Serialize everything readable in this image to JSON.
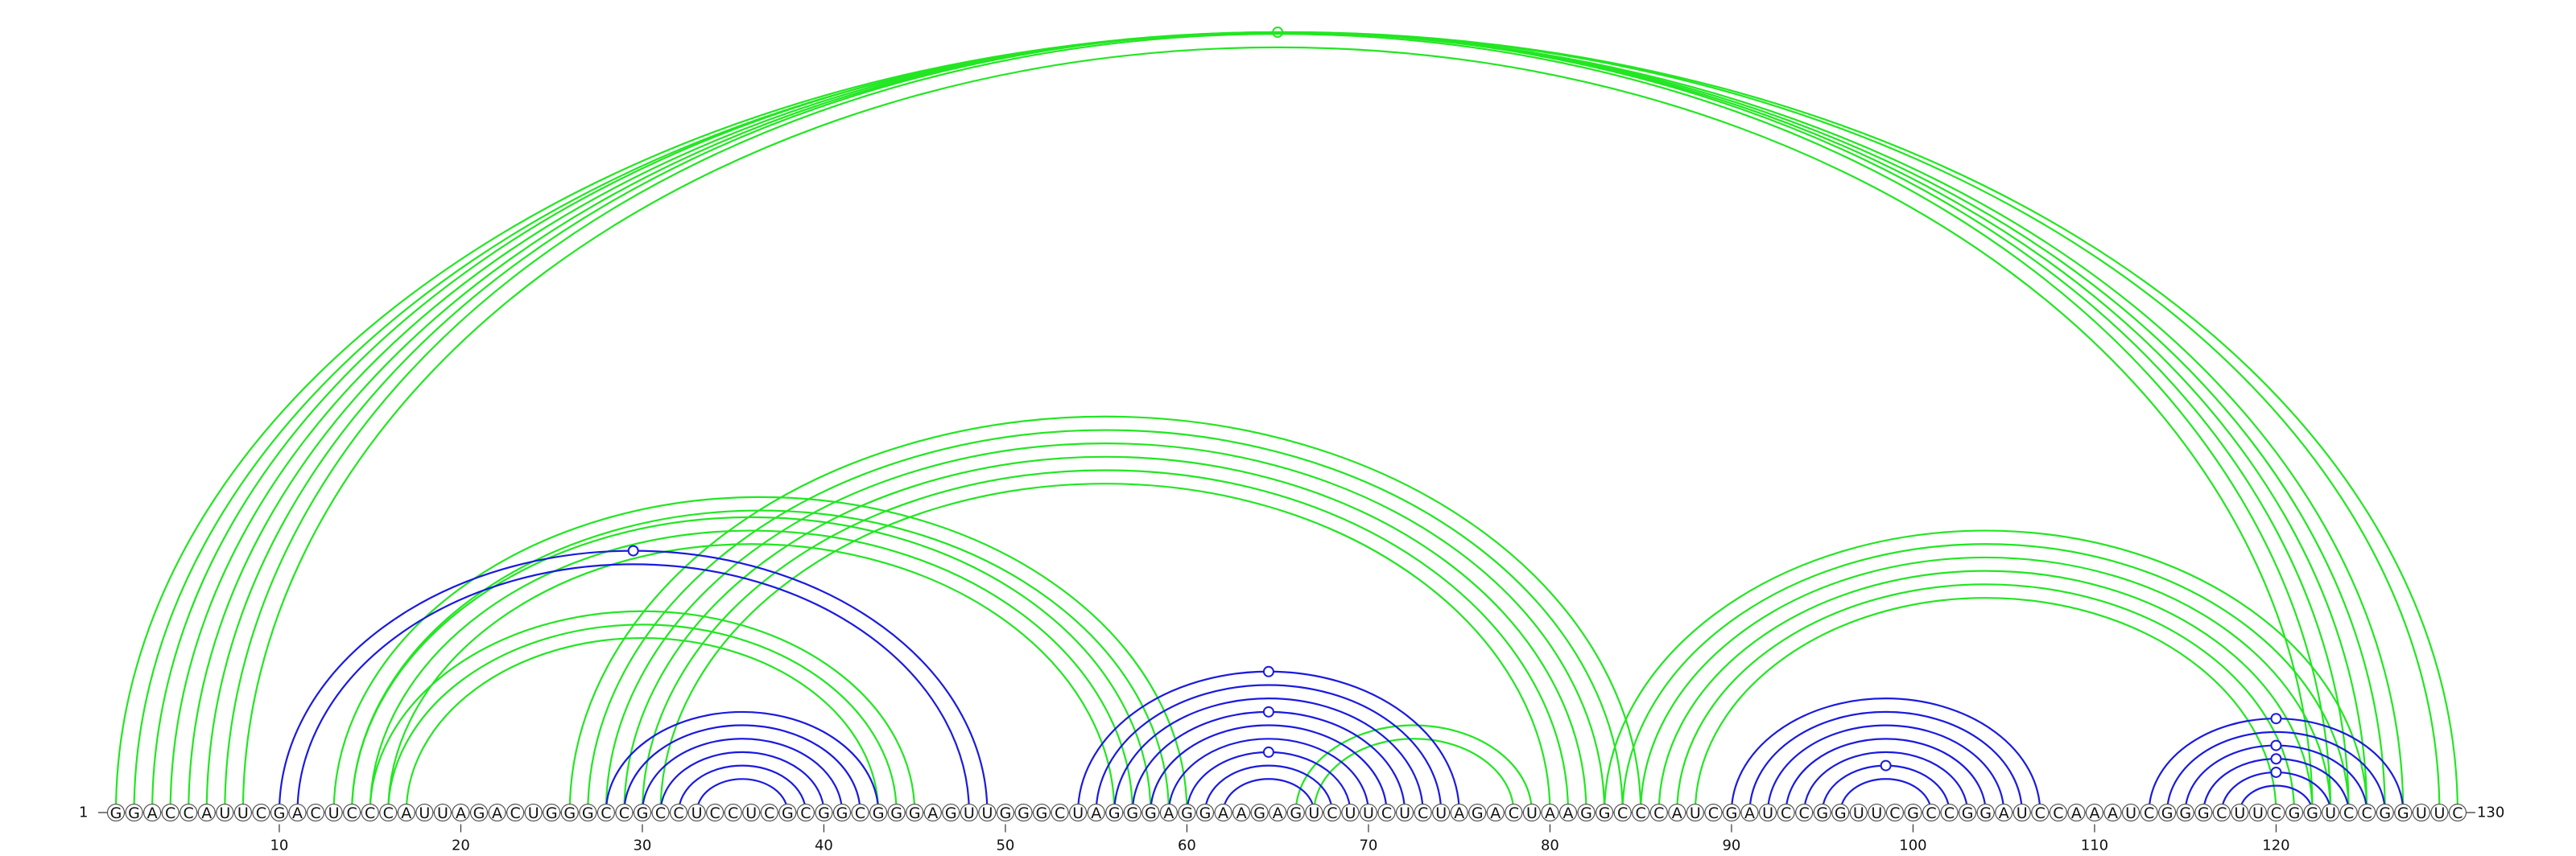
{
  "sequence": "GGACCAUUCGACUCCCAUUAGACUGGGCCGCCUCCUCGCGGCGGGAGUUGGGCUAGGGAGGAAGAGUCUUCUCUAGACUAAGGCCCAUCGAUCCGGUUCGCCGGAUCCAAAUCGGGCUUCGGUCCGGUUC",
  "start_label": "1",
  "end_label": "130",
  "tick_labels": [
    "10",
    "20",
    "30",
    "40",
    "50",
    "60",
    "70",
    "80",
    "90",
    "100",
    "110",
    "120"
  ],
  "colors": {
    "blue": "#1a1ae0",
    "green": "#22e622"
  },
  "arc_groups": [
    {
      "color": "green",
      "i": 1,
      "j": 130,
      "n": 2,
      "marker": "65"
    },
    {
      "color": "green",
      "i": 3,
      "j": 127,
      "n": 6,
      "marker": ""
    },
    {
      "color": "green",
      "i": 13,
      "j": 60,
      "n": 2,
      "marker": ""
    },
    {
      "color": "green",
      "i": 14,
      "j": 58,
      "n": 3,
      "marker": ""
    },
    {
      "color": "green",
      "i": 15,
      "j": 45,
      "n": 3,
      "marker": ""
    },
    {
      "color": "green",
      "i": 26,
      "j": 85,
      "n": 6,
      "marker": ""
    },
    {
      "color": "green",
      "i": 83,
      "j": 125,
      "n": 6,
      "marker": ""
    },
    {
      "color": "green",
      "i": 66,
      "j": 79,
      "n": 2,
      "marker": ""
    },
    {
      "color": "blue",
      "i": 10,
      "j": 49,
      "n": 2,
      "marker": "29.5"
    },
    {
      "color": "blue",
      "i": 28,
      "j": 43,
      "n": 6,
      "marker": ""
    },
    {
      "color": "blue",
      "i": 54,
      "j": 75,
      "n": 9,
      "marker": "64.5:1,64.5:4,64.5:7"
    },
    {
      "color": "blue",
      "i": 90,
      "j": 107,
      "n": 7,
      "marker": "98.5:6"
    },
    {
      "color": "blue",
      "i": 113,
      "j": 127,
      "n": 6,
      "marker": "120:1,120:3,120:4,120:5"
    }
  ]
}
